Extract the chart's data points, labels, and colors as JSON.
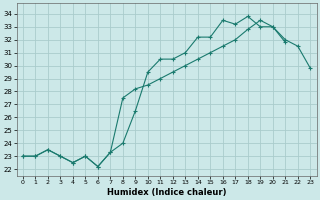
{
  "xlabel": "Humidex (Indice chaleur)",
  "bg_color": "#cce8e8",
  "grid_color": "#aacccc",
  "line_color": "#1a7a6e",
  "xlim": [
    -0.5,
    23.5
  ],
  "ylim": [
    21.5,
    34.8
  ],
  "yticks": [
    22,
    23,
    24,
    25,
    26,
    27,
    28,
    29,
    30,
    31,
    32,
    33,
    34
  ],
  "xticks": [
    0,
    1,
    2,
    3,
    4,
    5,
    6,
    7,
    8,
    9,
    10,
    11,
    12,
    13,
    14,
    15,
    16,
    17,
    18,
    19,
    20,
    21,
    22,
    23
  ],
  "s1x": [
    0,
    1,
    2,
    3,
    4,
    5,
    6,
    7,
    8,
    9,
    10,
    11,
    12,
    13,
    14,
    15,
    16,
    17,
    18,
    19,
    20,
    21,
    22,
    23
  ],
  "s1y": [
    23.0,
    23.0,
    23.5,
    23.0,
    22.5,
    23.0,
    22.2,
    23.3,
    27.5,
    28.2,
    28.5,
    29.0,
    29.5,
    30.0,
    30.5,
    31.0,
    31.5,
    32.0,
    32.8,
    33.5,
    33.0,
    32.0,
    31.5,
    29.8
  ],
  "s2x": [
    0,
    1,
    2,
    3,
    4,
    5,
    6,
    7,
    8,
    9,
    10,
    11,
    12,
    13,
    14,
    15,
    16,
    17,
    18,
    19,
    20,
    21
  ],
  "s2y": [
    23.0,
    23.0,
    23.5,
    23.0,
    22.5,
    23.0,
    22.2,
    23.3,
    24.0,
    26.5,
    29.5,
    30.5,
    30.5,
    31.0,
    32.2,
    32.2,
    33.5,
    33.2,
    33.8,
    33.0,
    33.0,
    31.8
  ]
}
